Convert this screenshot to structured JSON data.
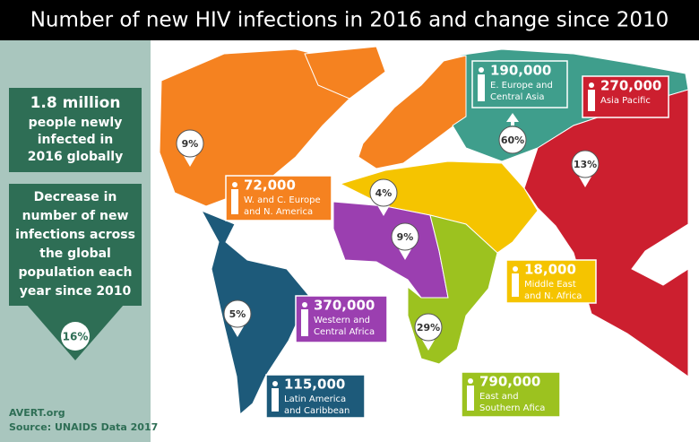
{
  "header": {
    "title": "Number of new HIV infections in 2016 and change since 2010"
  },
  "sidebar": {
    "headline": "1.8 million",
    "headline_lines": [
      "people newly",
      "infected in",
      "2016 globally"
    ],
    "decrease_lines": [
      "Decrease in",
      "number of new",
      "infections across",
      "the global",
      "population each",
      "year since 2010"
    ],
    "decrease_value": "16%",
    "source_lines": [
      "AVERT.org",
      "Source: UNAIDS Data 2017"
    ]
  },
  "regions": [
    {
      "infections": "72,000",
      "name_lines": [
        "W. and C. Europe",
        "and N. America"
      ],
      "change": "9%",
      "direction": "down",
      "color": "#f58220"
    },
    {
      "infections": "190,000",
      "name_lines": [
        "E. Europe and",
        "Central Asia"
      ],
      "change": "60%",
      "direction": "up",
      "color": "#3f9e8c"
    },
    {
      "infections": "270,000",
      "name_lines": [
        "Asia Pacific"
      ],
      "change": "13%",
      "direction": "down",
      "color": "#cc1f2f"
    },
    {
      "infections": "18,000",
      "name_lines": [
        "Middle East",
        "and N. Africa"
      ],
      "change": "4%",
      "direction": "down",
      "color": "#f5c400"
    },
    {
      "infections": "370,000",
      "name_lines": [
        "Western and",
        "Central Africa"
      ],
      "change": "9%",
      "direction": "down",
      "color": "#9b3fb0"
    },
    {
      "infections": "790,000",
      "name_lines": [
        "East and",
        "Southern Afica"
      ],
      "change": "29%",
      "direction": "down",
      "color": "#9cc21f"
    },
    {
      "infections": "115,000",
      "name_lines": [
        "Latin America",
        "and Caribbean"
      ],
      "change": "5%",
      "direction": "down",
      "color": "#1d5a7a"
    }
  ]
}
